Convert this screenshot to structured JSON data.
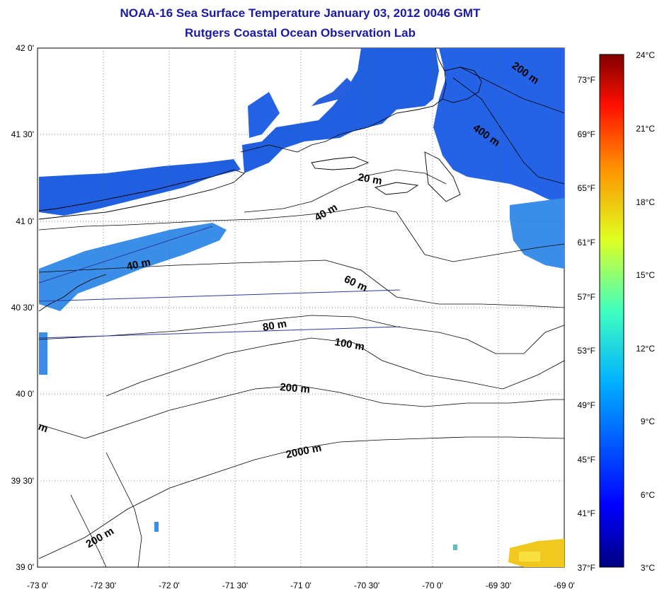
{
  "title_line1": "NOAA-16 Sea Surface Temperature January 03, 2012 0046 GMT",
  "title_line2": "Rutgers Coastal Ocean Observation Lab",
  "colors": {
    "title": "#1a1aa6",
    "coast": "#000000",
    "sst_blue": "#1f5fe0",
    "sst_light": "#3b8ee8",
    "sst_warm": "#f5d020",
    "track": "#2a3aa0"
  },
  "lat_labels": [
    "42 0'",
    "41 30'",
    "41 0'",
    "40 30'",
    "40 0'",
    "39 30'",
    "39 0'"
  ],
  "lon_labels": [
    "-73 0'",
    "-72 30'",
    "-72 0'",
    "-71 30'",
    "-71 0'",
    "-70 30'",
    "-70 0'",
    "-69 30'",
    "-69 0'"
  ],
  "fahrenheit_labels": [
    "73°F",
    "69°F",
    "65°F",
    "61°F",
    "57°F",
    "53°F",
    "49°F",
    "45°F",
    "41°F",
    "37°F"
  ],
  "celsius_labels": [
    "24°C",
    "21°C",
    "18°C",
    "15°C",
    "12°C",
    "9°C",
    "6°C",
    "3°C"
  ],
  "contour_labels": [
    "200 m",
    "400 m",
    "20 m",
    "40 m",
    "40 m",
    "60 m",
    "80 m",
    "100 m",
    "200 m",
    "2000 m",
    "200 m",
    "m"
  ]
}
